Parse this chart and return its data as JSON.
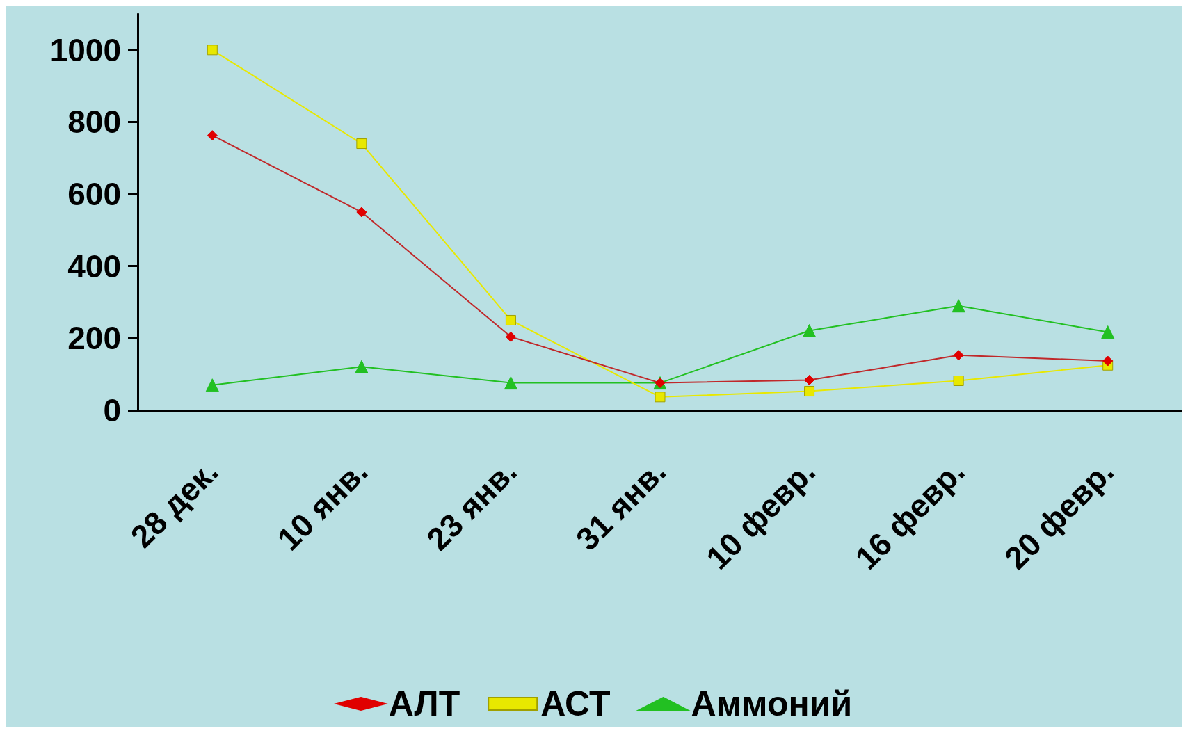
{
  "chart_data": {
    "type": "line",
    "categories": [
      "28 дек.",
      "10 янв.",
      "23 янв.",
      "31 янв.",
      "10 февр.",
      "16 февр.",
      "20 февр."
    ],
    "series": [
      {
        "name": "АЛТ",
        "color": "#c0282a",
        "marker": "diamond",
        "values": [
          763,
          550,
          204,
          76,
          84,
          153,
          137
        ]
      },
      {
        "name": "АСТ",
        "color": "#e8e800",
        "marker": "square",
        "values": [
          1000,
          740,
          250,
          37,
          53,
          82,
          125
        ]
      },
      {
        "name": "Аммоний",
        "color": "#22c022",
        "marker": "triangle",
        "values": [
          70,
          121,
          76,
          76,
          221,
          290,
          217
        ]
      }
    ],
    "ylim": [
      0,
      1100
    ],
    "yticks": [
      0,
      200,
      400,
      600,
      800,
      1000
    ],
    "grid": false,
    "legend": "bottom"
  }
}
